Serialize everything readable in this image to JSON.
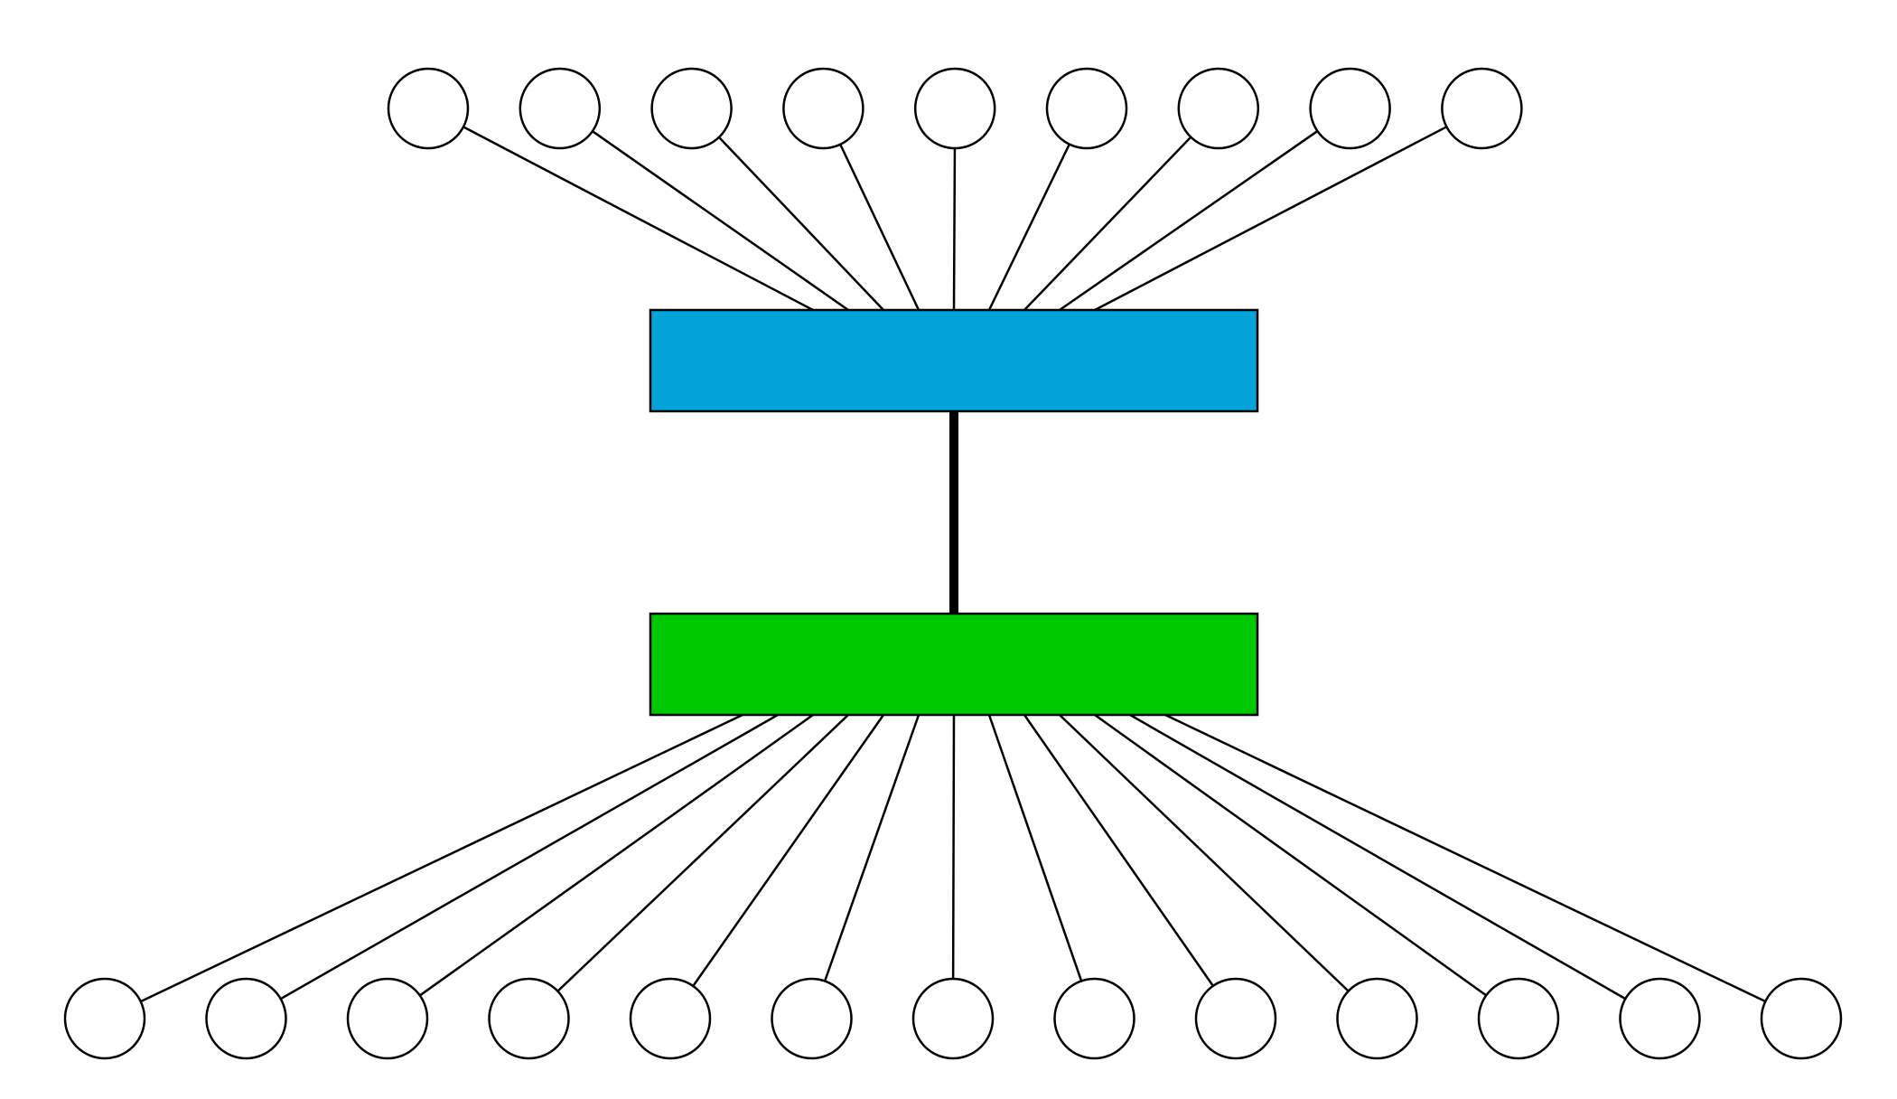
{
  "diagram": {
    "type": "network-topology",
    "top_switch": {
      "color": "#03a3da",
      "node_count": 9
    },
    "bottom_switch": {
      "color": "#00c800",
      "node_count": 13
    },
    "node_color": "#ffffff",
    "line_color": "#000000",
    "uplink": {
      "between": [
        "top_switch",
        "bottom_switch"
      ],
      "style": "thick"
    }
  }
}
